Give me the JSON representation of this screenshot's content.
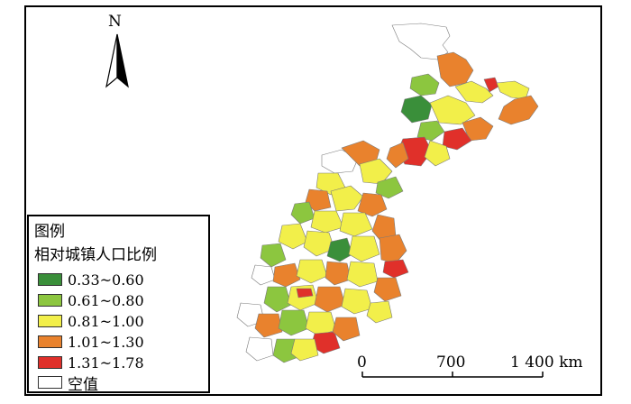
{
  "north_arrow": {
    "letter": "N"
  },
  "legend": {
    "title": "图例",
    "subtitle": "相对城镇人口比例",
    "items": [
      {
        "label": "0.33~0.60",
        "color": "#3a8f3a"
      },
      {
        "label": "0.61~0.80",
        "color": "#8cc63f"
      },
      {
        "label": "0.81~1.00",
        "color": "#f2ef4a"
      },
      {
        "label": "1.01~1.30",
        "color": "#e9822d"
      },
      {
        "label": "1.31~1.78",
        "color": "#e0302a"
      },
      {
        "label": "空值",
        "color": "#ffffff"
      }
    ]
  },
  "scale_bar": {
    "labels": [
      "0",
      "700",
      "1 400 km"
    ]
  }
}
